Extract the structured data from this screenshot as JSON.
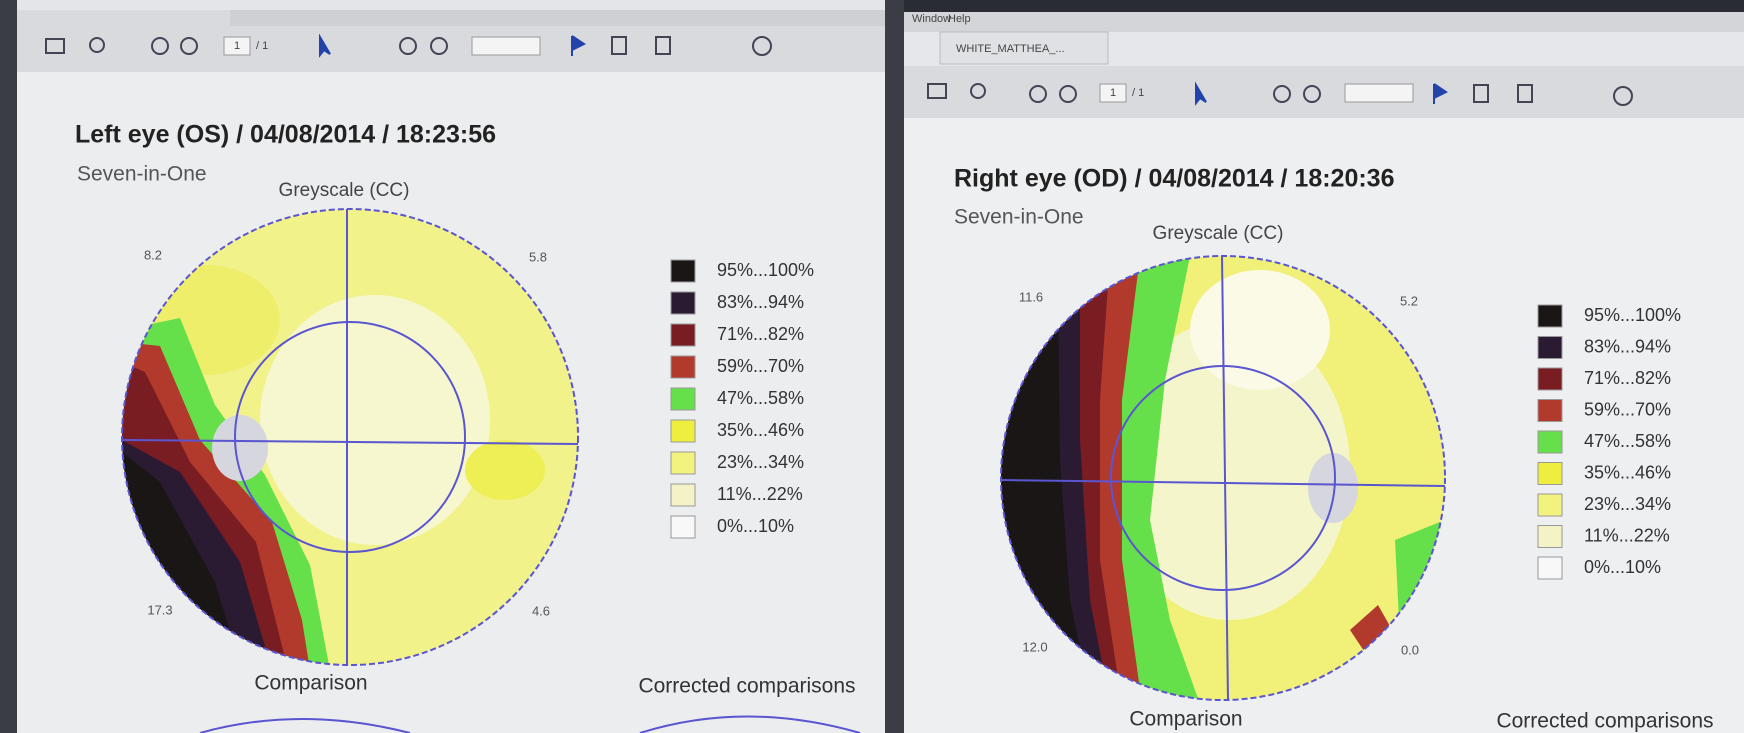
{
  "legend": [
    {
      "label": "95%...100%",
      "color": "#1b1616"
    },
    {
      "label": "83%...94%",
      "color": "#2b1b32"
    },
    {
      "label": "71%...82%",
      "color": "#7a1d22"
    },
    {
      "label": "59%...70%",
      "color": "#b23a2d"
    },
    {
      "label": "47%...58%",
      "color": "#66e04a"
    },
    {
      "label": "35%...46%",
      "color": "#eeee3e"
    },
    {
      "label": "23%...34%",
      "color": "#f2f27e"
    },
    {
      "label": "11%...22%",
      "color": "#f3f3c6"
    },
    {
      "label": "0%...10%",
      "color": "#f8f8f8"
    }
  ],
  "left_window": {
    "toolbar": {
      "page": "1",
      "pages": "/ 1"
    },
    "report": {
      "title": "Left eye (OS) / 04/08/2014 / 18:23:56",
      "subtitle": "Seven-in-One",
      "plot_title": "Greyscale (CC)",
      "corners": {
        "top_left": "8.2",
        "top_right": "5.8",
        "bottom_left": "17.3",
        "bottom_right": "4.6"
      },
      "sections": [
        "Comparison",
        "Corrected comparisons"
      ]
    }
  },
  "right_window": {
    "menu": [
      "Window",
      "Help"
    ],
    "tab": "WHITE_MATTHEA_...",
    "toolbar": {
      "page": "1",
      "pages": "/ 1"
    },
    "report": {
      "title": "Right eye (OD) / 04/08/2014 / 18:20:36",
      "subtitle": "Seven-in-One",
      "plot_title": "Greyscale (CC)",
      "corners": {
        "top_left": "11.6",
        "top_right": "5.2",
        "bottom_left": "12.0",
        "bottom_right": "0.0"
      },
      "sections": [
        "Comparison",
        "Corrected comparisons"
      ]
    }
  }
}
